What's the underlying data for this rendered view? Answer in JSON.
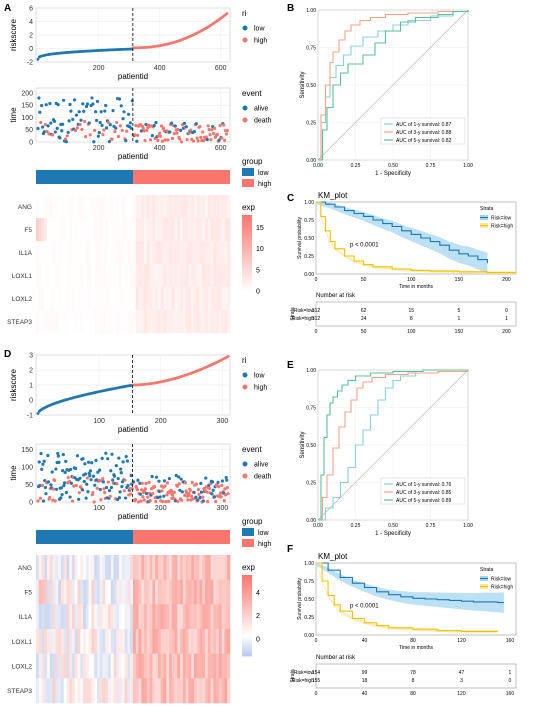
{
  "colors": {
    "low": "#1f77b4",
    "high": "#f8766d",
    "roc_1y": "#8ecfe0",
    "roc_3y": "#f4a38a",
    "roc_5y": "#5bbf9a",
    "km_low": "#1f77b4",
    "km_high": "#f2c200",
    "km_low_band": "#9fd3f0",
    "km_high_band": "#f8e79a"
  },
  "chart_data": [
    {
      "panel": "A",
      "type": "scatter",
      "ylabel": "riskscore",
      "xlabel": "patientid",
      "x_ticks": [
        "200",
        "400",
        "600"
      ],
      "y_ticks": [
        "-2",
        "0",
        "2",
        "4",
        "6"
      ],
      "ylim": [
        -2,
        6
      ],
      "xlim": [
        1,
        624
      ],
      "cutoff_x": 312,
      "legend_title": "ri",
      "legend": [
        "low",
        "high"
      ]
    },
    {
      "panel": "A",
      "type": "scatter",
      "ylabel": "time",
      "xlabel": "patientid",
      "x_ticks": [
        "200",
        "400",
        "600"
      ],
      "y_ticks": [
        "0",
        "50",
        "100",
        "150",
        "200"
      ],
      "ylim": [
        0,
        220
      ],
      "cutoff_x": 312,
      "legend_title": "event",
      "legend": [
        "alive",
        "death"
      ]
    },
    {
      "panel": "A",
      "type": "heatmap",
      "group_title": "group",
      "group_legend": [
        "low",
        "high"
      ],
      "rows": [
        "ANG",
        "F5",
        "IL1A",
        "LOXL1",
        "LOXL2",
        "STEAP3"
      ],
      "legend_title": "exp",
      "legend_ticks": [
        "0",
        "5",
        "10",
        "15"
      ],
      "legend_range": [
        0,
        18
      ]
    },
    {
      "panel": "B",
      "type": "line",
      "xlabel": "1 - Specificity",
      "ylabel": "Sensitivity",
      "x_ticks": [
        "0.00",
        "0.25",
        "0.50",
        "0.75",
        "1.00"
      ],
      "y_ticks": [
        "0.00",
        "0.25",
        "0.50",
        "0.75",
        "1.00"
      ],
      "series": [
        {
          "name": "AUC of 1-y survival: 0.87",
          "x": [
            0,
            0.02,
            0.05,
            0.08,
            0.12,
            0.17,
            0.22,
            0.3,
            0.4,
            0.5,
            0.6,
            0.75,
            0.9,
            1
          ],
          "y": [
            0,
            0.25,
            0.42,
            0.55,
            0.63,
            0.7,
            0.76,
            0.82,
            0.86,
            0.9,
            0.93,
            0.96,
            0.99,
            1
          ]
        },
        {
          "name": "AUC of 3-y survival: 0.88",
          "x": [
            0,
            0.02,
            0.05,
            0.08,
            0.1,
            0.14,
            0.18,
            0.22,
            0.28,
            0.35,
            0.45,
            0.6,
            0.8,
            1
          ],
          "y": [
            0,
            0.3,
            0.5,
            0.65,
            0.72,
            0.8,
            0.86,
            0.9,
            0.93,
            0.95,
            0.97,
            0.98,
            0.99,
            1
          ]
        },
        {
          "name": "AUC of 5-y survival: 0.82",
          "x": [
            0,
            0.03,
            0.06,
            0.1,
            0.15,
            0.2,
            0.3,
            0.38,
            0.45,
            0.55,
            0.65,
            0.8,
            0.9,
            1
          ],
          "y": [
            0,
            0.2,
            0.35,
            0.5,
            0.58,
            0.64,
            0.7,
            0.78,
            0.86,
            0.92,
            0.95,
            0.97,
            0.99,
            1
          ]
        }
      ]
    },
    {
      "panel": "C",
      "type": "line",
      "title": "KM_plot",
      "xlabel": "Time in months",
      "ylabel": "Survival probability",
      "x_ticks": [
        "0",
        "50",
        "100",
        "150",
        "200"
      ],
      "y_ticks": [
        "0.00",
        "0.25",
        "0.50",
        "0.75",
        "1.00"
      ],
      "xlim": [
        0,
        210
      ],
      "pvalue": "p < 0.0001",
      "legend_title": "Strata",
      "series": [
        {
          "name": "Risk=low",
          "x": [
            0,
            10,
            20,
            30,
            40,
            50,
            60,
            70,
            80,
            90,
            100,
            110,
            120,
            130,
            140,
            150,
            160,
            170,
            180
          ],
          "y": [
            1,
            0.97,
            0.93,
            0.88,
            0.84,
            0.8,
            0.75,
            0.7,
            0.66,
            0.6,
            0.55,
            0.5,
            0.45,
            0.4,
            0.33,
            0.28,
            0.25,
            0.2,
            0.15
          ]
        },
        {
          "name": "Risk=high",
          "x": [
            0,
            5,
            10,
            15,
            20,
            30,
            40,
            50,
            60,
            80,
            100,
            120,
            150,
            180,
            210
          ],
          "y": [
            1,
            0.8,
            0.6,
            0.45,
            0.35,
            0.25,
            0.18,
            0.13,
            0.1,
            0.07,
            0.05,
            0.04,
            0.03,
            0.02,
            0.02
          ]
        }
      ],
      "risk_table_title": "Number at risk",
      "risk_table_strata_label": "Strata",
      "risk_table": [
        {
          "label": "Risk=low",
          "values": [
            "312",
            "62",
            "15",
            "5",
            "0"
          ]
        },
        {
          "label": "Risk=high",
          "values": [
            "312",
            "24",
            "8",
            "1",
            "1"
          ]
        }
      ],
      "risk_x_ticks": [
        "0",
        "50",
        "100",
        "150",
        "200"
      ]
    },
    {
      "panel": "D",
      "type": "scatter",
      "ylabel": "riskscore",
      "xlabel": "patientid",
      "x_ticks": [
        "100",
        "200",
        "300"
      ],
      "y_ticks": [
        "-1",
        "0",
        "1",
        "2",
        "3"
      ],
      "ylim": [
        -1,
        3
      ],
      "xlim": [
        1,
        309
      ],
      "cutoff_x": 154,
      "legend_title": "ri",
      "legend": [
        "low",
        "high"
      ]
    },
    {
      "panel": "D",
      "type": "scatter",
      "ylabel": "time",
      "xlabel": "patientid",
      "x_ticks": [
        "100",
        "200",
        "300"
      ],
      "y_ticks": [
        "0",
        "50",
        "100",
        "150"
      ],
      "ylim": [
        0,
        165
      ],
      "cutoff_x": 154,
      "legend_title": "event",
      "legend": [
        "alive",
        "death"
      ]
    },
    {
      "panel": "D",
      "type": "heatmap",
      "group_title": "group",
      "group_legend": [
        "low",
        "high"
      ],
      "rows": [
        "ANG",
        "F5",
        "IL1A",
        "LOXL1",
        "LOXL2",
        "STEAP3"
      ],
      "legend_title": "exp",
      "legend_ticks": [
        "0",
        "2",
        "4"
      ],
      "legend_range": [
        -1.5,
        5.5
      ]
    },
    {
      "panel": "E",
      "type": "line",
      "xlabel": "1 - Specificity",
      "ylabel": "Sensitivity",
      "x_ticks": [
        "0.00",
        "0.25",
        "0.50",
        "0.75",
        "1.00"
      ],
      "y_ticks": [
        "0.00",
        "0.25",
        "0.50",
        "0.75",
        "1.00"
      ],
      "series": [
        {
          "name": "AUC of 1-y survival: 0.76",
          "x": [
            0,
            0.05,
            0.1,
            0.15,
            0.2,
            0.25,
            0.3,
            0.35,
            0.4,
            0.45,
            0.5,
            0.55,
            0.65,
            0.8,
            1
          ],
          "y": [
            0,
            0.08,
            0.15,
            0.25,
            0.35,
            0.5,
            0.6,
            0.7,
            0.8,
            0.88,
            0.93,
            0.96,
            0.98,
            0.99,
            1
          ]
        },
        {
          "name": "AUC of 3-y survival: 0.85",
          "x": [
            0,
            0.03,
            0.06,
            0.1,
            0.14,
            0.18,
            0.22,
            0.26,
            0.3,
            0.36,
            0.45,
            0.6,
            0.8,
            1
          ],
          "y": [
            0,
            0.15,
            0.3,
            0.48,
            0.62,
            0.72,
            0.8,
            0.88,
            0.92,
            0.95,
            0.97,
            0.98,
            0.99,
            1
          ]
        },
        {
          "name": "AUC of 5-y survival: 0.89",
          "x": [
            0,
            0.02,
            0.04,
            0.06,
            0.08,
            0.1,
            0.13,
            0.16,
            0.2,
            0.25,
            0.35,
            0.5,
            0.7,
            1
          ],
          "y": [
            0,
            0.3,
            0.55,
            0.7,
            0.78,
            0.82,
            0.86,
            0.9,
            0.93,
            0.96,
            0.98,
            0.99,
            1,
            1
          ]
        }
      ]
    },
    {
      "panel": "F",
      "type": "line",
      "title": "KM_plot",
      "xlabel": "Time in months",
      "ylabel": "Survival probability",
      "x_ticks": [
        "0",
        "40",
        "80",
        "120",
        "160"
      ],
      "y_ticks": [
        "0.00",
        "0.25",
        "0.50",
        "0.75",
        "1.00"
      ],
      "xlim": [
        0,
        165
      ],
      "pvalue": "p < 0.0001",
      "legend_title": "Strata",
      "series": [
        {
          "name": "Risk=low",
          "x": [
            0,
            10,
            20,
            30,
            40,
            50,
            60,
            70,
            80,
            90,
            100,
            110,
            120,
            130,
            140,
            150,
            155
          ],
          "y": [
            1,
            0.9,
            0.8,
            0.72,
            0.66,
            0.6,
            0.56,
            0.53,
            0.51,
            0.5,
            0.49,
            0.48,
            0.47,
            0.46,
            0.46,
            0.45,
            0.45
          ]
        },
        {
          "name": "Risk=high",
          "x": [
            0,
            5,
            10,
            15,
            20,
            30,
            40,
            50,
            60,
            80,
            100,
            120,
            140,
            150
          ],
          "y": [
            1,
            0.75,
            0.55,
            0.42,
            0.33,
            0.23,
            0.17,
            0.13,
            0.1,
            0.08,
            0.06,
            0.05,
            0.05,
            0.05
          ]
        }
      ],
      "risk_table_title": "Number at risk",
      "risk_table_strata_label": "Strata",
      "risk_table": [
        {
          "label": "Risk=low",
          "values": [
            "154",
            "99",
            "78",
            "47",
            "1"
          ]
        },
        {
          "label": "Risk=high",
          "values": [
            "155",
            "18",
            "8",
            "3",
            "0"
          ]
        }
      ],
      "risk_x_ticks": [
        "0",
        "40",
        "80",
        "120",
        "160"
      ]
    }
  ],
  "panels": {
    "A": "A",
    "B": "B",
    "C": "C",
    "D": "D",
    "E": "E",
    "F": "F"
  }
}
